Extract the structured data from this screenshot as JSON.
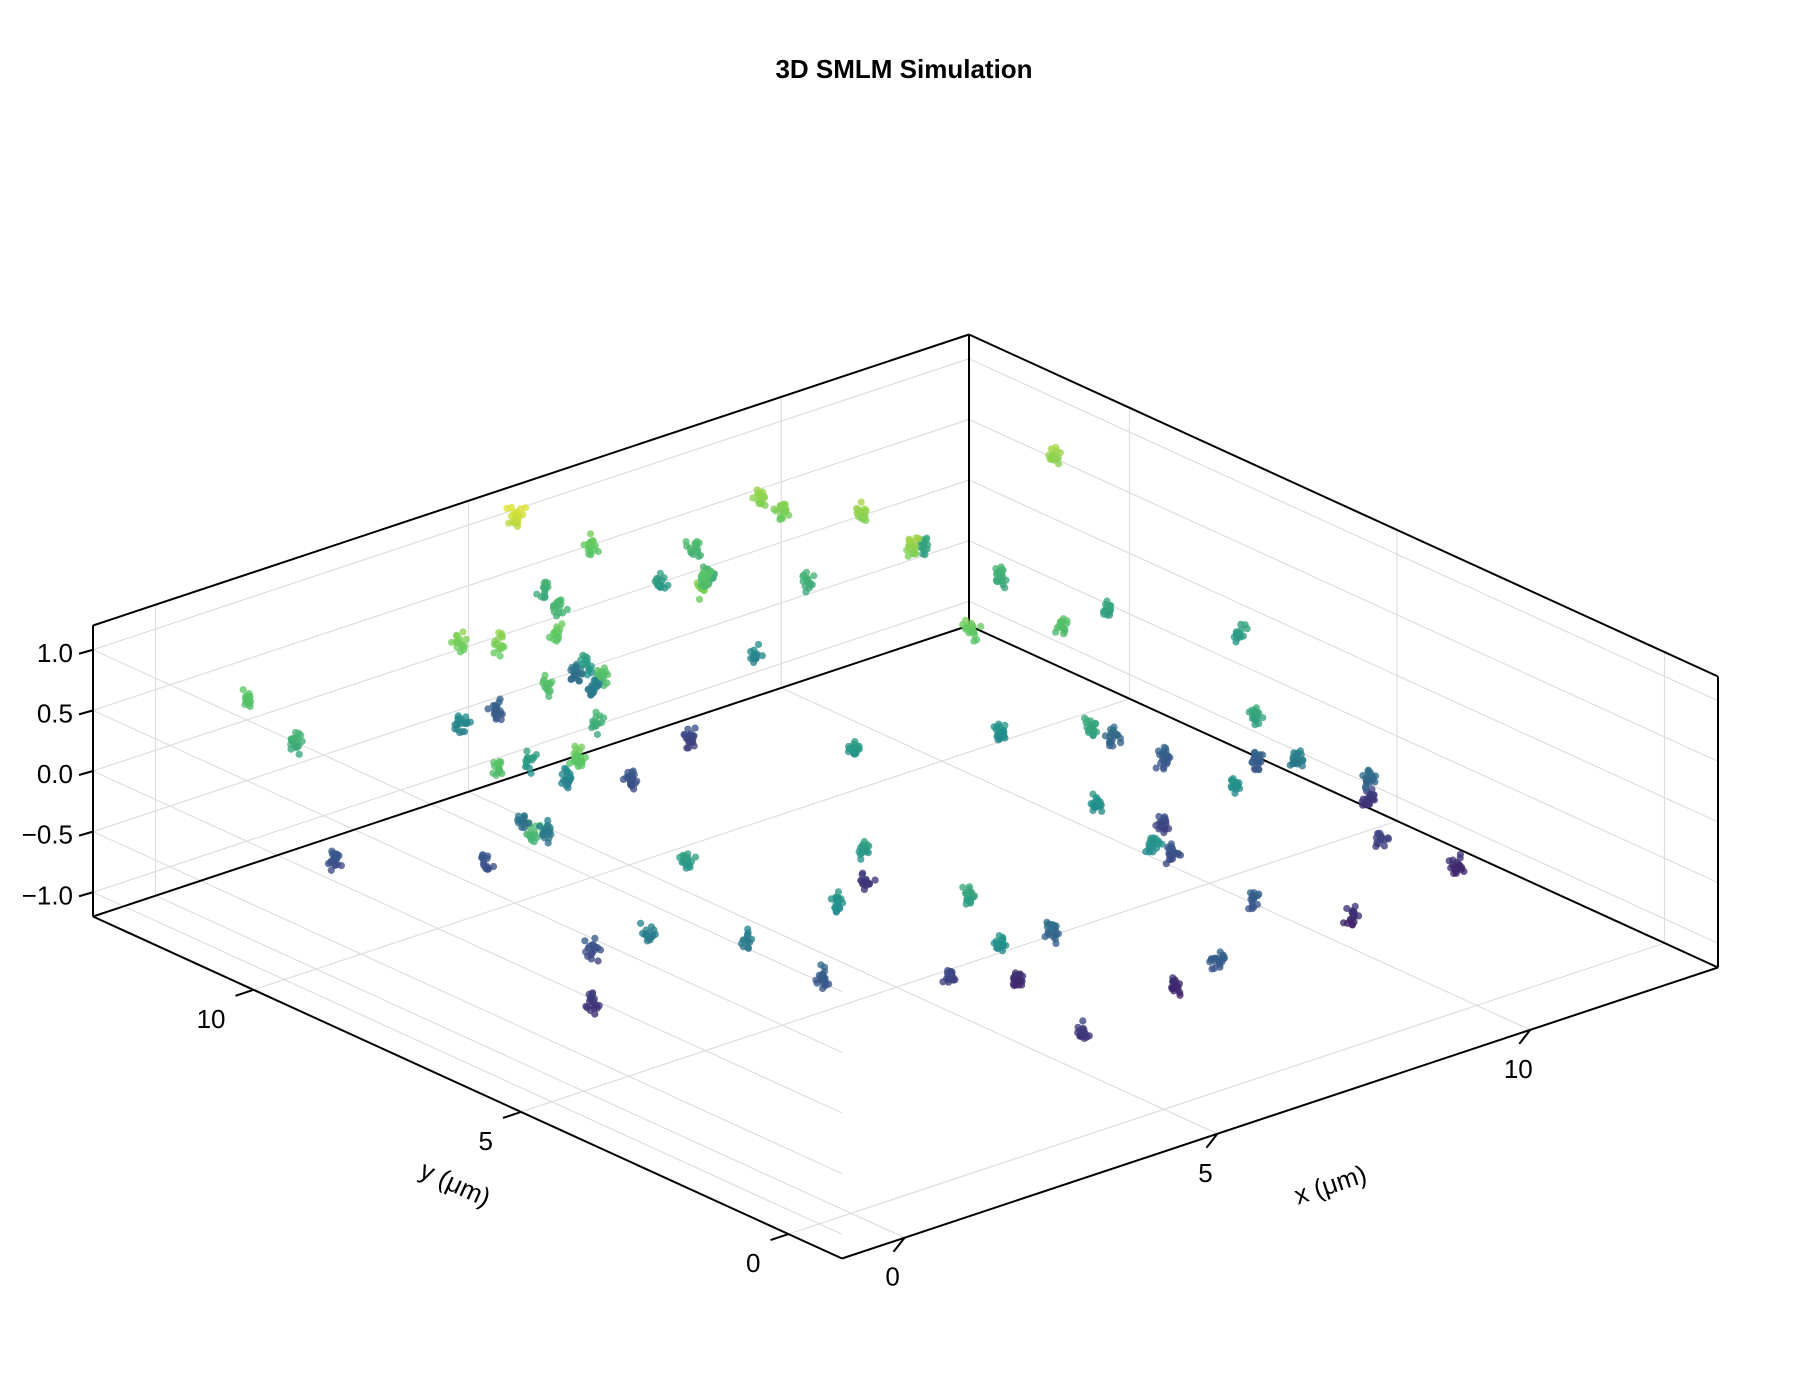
{
  "chart_data": {
    "type": "scatter",
    "title": "3D SMLM Simulation",
    "xlabel": "x (μm)",
    "ylabel": "y (μm)",
    "zlabel": "",
    "xlim": [
      -1,
      13
    ],
    "ylim": [
      -1,
      13
    ],
    "zlim": [
      -1.2,
      1.2
    ],
    "x_ticks": [
      {
        "value": 0,
        "label": "0"
      },
      {
        "value": 5,
        "label": "5"
      },
      {
        "value": 10,
        "label": "10"
      }
    ],
    "y_ticks": [
      {
        "value": 0,
        "label": "0"
      },
      {
        "value": 5,
        "label": "5"
      },
      {
        "value": 10,
        "label": "10"
      }
    ],
    "z_ticks": [
      {
        "value": -1.0,
        "label": "−1.0"
      },
      {
        "value": -0.5,
        "label": "−0.5"
      },
      {
        "value": 0.0,
        "label": "0.0"
      },
      {
        "value": 0.5,
        "label": "0.5"
      },
      {
        "value": 1.0,
        "label": "1.0"
      }
    ],
    "grid": true,
    "colormap": "viridis",
    "color_by": "z",
    "colors": [
      "#440154",
      "#3b528b",
      "#21918c",
      "#5ec962",
      "#fde725"
    ],
    "clusters": [
      {
        "x": 0.6,
        "y": 12.0,
        "z": 0.5
      },
      {
        "x": 0.7,
        "y": 11.2,
        "z": 0.3
      },
      {
        "x": 0.9,
        "y": 10.7,
        "z": -0.6
      },
      {
        "x": 0.8,
        "y": 6.9,
        "z": 0.4
      },
      {
        "x": 0.9,
        "y": 5.9,
        "z": -0.8
      },
      {
        "x": 1.5,
        "y": 6.6,
        "z": -0.6
      },
      {
        "x": 1.3,
        "y": 5.3,
        "z": -0.2
      },
      {
        "x": 2.4,
        "y": 5.9,
        "z": 0.1
      },
      {
        "x": 2.1,
        "y": 4.4,
        "z": -0.2
      },
      {
        "x": 2.8,
        "y": 3.8,
        "z": -0.5
      },
      {
        "x": 3.2,
        "y": 4.0,
        "z": 0.0
      },
      {
        "x": 2.3,
        "y": 7.8,
        "z": 0.6
      },
      {
        "x": 2.5,
        "y": 8.6,
        "z": -0.2
      },
      {
        "x": 1.6,
        "y": 8.5,
        "z": 0.5
      },
      {
        "x": 2.2,
        "y": 9.4,
        "z": -0.6
      },
      {
        "x": 2.7,
        "y": 9.3,
        "z": -0.3
      },
      {
        "x": 3.0,
        "y": 9.5,
        "z": 0.1
      },
      {
        "x": 3.5,
        "y": 9.4,
        "z": -0.1
      },
      {
        "x": 3.6,
        "y": 10.8,
        "z": 0.7
      },
      {
        "x": 3.3,
        "y": 11.2,
        "z": 0.7
      },
      {
        "x": 3.6,
        "y": 11.5,
        "z": -0.1
      },
      {
        "x": 3.7,
        "y": 10.0,
        "z": 0.5
      },
      {
        "x": 3.9,
        "y": 9.3,
        "z": 0.3
      },
      {
        "x": 4.4,
        "y": 9.8,
        "z": 0.5
      },
      {
        "x": 4.6,
        "y": 10.9,
        "z": 0.6
      },
      {
        "x": 5.3,
        "y": 10.3,
        "z": -0.6
      },
      {
        "x": 6.6,
        "y": 10.5,
        "z": 0.7
      },
      {
        "x": 7.7,
        "y": 10.8,
        "z": -0.1
      },
      {
        "x": 8.7,
        "y": 11.0,
        "z": 0.3
      },
      {
        "x": 6.3,
        "y": 7.3,
        "z": 0.1
      },
      {
        "x": 5.9,
        "y": 6.6,
        "z": -0.8
      },
      {
        "x": 4.3,
        "y": 4.8,
        "z": 0.1
      },
      {
        "x": 4.5,
        "y": 3.4,
        "z": -0.7
      },
      {
        "x": 5.5,
        "y": 3.3,
        "z": -0.9
      },
      {
        "x": 4.1,
        "y": 2.6,
        "z": 0.2
      },
      {
        "x": 5.6,
        "y": 2.8,
        "z": -0.4
      },
      {
        "x": 3.9,
        "y": 1.8,
        "z": 0.0
      },
      {
        "x": 4.8,
        "y": 1.3,
        "z": -0.8
      },
      {
        "x": 6.8,
        "y": 1.1,
        "z": -0.5
      },
      {
        "x": 6.9,
        "y": 2.0,
        "z": -0.9
      },
      {
        "x": 7.3,
        "y": 2.9,
        "z": 0.0
      },
      {
        "x": 8.4,
        "y": 2.3,
        "z": -0.5
      },
      {
        "x": 9.9,
        "y": 2.2,
        "z": -0.9
      },
      {
        "x": 9.3,
        "y": 3.7,
        "z": 0.0
      },
      {
        "x": 7.6,
        "y": 4.3,
        "z": 0.0
      },
      {
        "x": 8.8,
        "y": 4.3,
        "z": -0.6
      },
      {
        "x": 9.5,
        "y": 5.3,
        "z": -0.7
      },
      {
        "x": 8.6,
        "y": 5.6,
        "z": 0.2
      },
      {
        "x": 8.2,
        "y": 6.8,
        "z": 0.0
      },
      {
        "x": 8.5,
        "y": 7.7,
        "z": 0.6
      },
      {
        "x": 9.7,
        "y": 7.4,
        "z": 0.5
      },
      {
        "x": 10.1,
        "y": 6.9,
        "z": -0.4
      },
      {
        "x": 10.4,
        "y": 6.3,
        "z": -0.5
      },
      {
        "x": 11.2,
        "y": 5.5,
        "z": -0.5
      },
      {
        "x": 12.2,
        "y": 4.6,
        "z": -0.8
      },
      {
        "x": 11.6,
        "y": 3.9,
        "z": -0.4
      },
      {
        "x": 11.3,
        "y": 3.3,
        "z": -0.7
      },
      {
        "x": 11.9,
        "y": 2.6,
        "z": -0.9
      },
      {
        "x": 12.1,
        "y": 6.9,
        "z": 0.1
      },
      {
        "x": 10.4,
        "y": 4.6,
        "z": 0.2
      },
      {
        "x": 10.9,
        "y": 4.4,
        "z": -0.2
      },
      {
        "x": 11.2,
        "y": 8.3,
        "z": 0.2
      },
      {
        "x": 12.3,
        "y": 10.6,
        "z": 0.8
      },
      {
        "x": 10.6,
        "y": 9.6,
        "z": 0.3
      },
      {
        "x": 10.8,
        "y": 11.3,
        "z": 0.2
      },
      {
        "x": 9.2,
        "y": 9.6,
        "z": 0.8
      },
      {
        "x": 9.4,
        "y": 10.8,
        "z": 0.8
      },
      {
        "x": 8.8,
        "y": 12.0,
        "z": 0.8
      },
      {
        "x": 8.9,
        "y": 11.7,
        "z": 0.7
      },
      {
        "x": 7.9,
        "y": 11.9,
        "z": 0.3
      },
      {
        "x": 7.8,
        "y": 12.7,
        "z": 0.1
      },
      {
        "x": 8.1,
        "y": 12.4,
        "z": 0.4
      },
      {
        "x": 6.7,
        "y": 12.7,
        "z": 0.6
      },
      {
        "x": 5.7,
        "y": 12.1,
        "z": 0.4
      },
      {
        "x": 5.8,
        "y": 11.6,
        "z": -0.2
      },
      {
        "x": 6.9,
        "y": 11.1,
        "z": -0.7
      },
      {
        "x": 7.3,
        "y": 11.3,
        "z": 0.5
      },
      {
        "x": 6.1,
        "y": 12.9,
        "z": 0.3
      },
      {
        "x": 6.2,
        "y": 12.4,
        "z": -0.3
      },
      {
        "x": 5.6,
        "y": 12.8,
        "z": 1.0
      },
      {
        "x": 5.5,
        "y": 11.4,
        "z": 0.1
      },
      {
        "x": 5.2,
        "y": 12.7,
        "z": -0.5
      }
    ]
  }
}
